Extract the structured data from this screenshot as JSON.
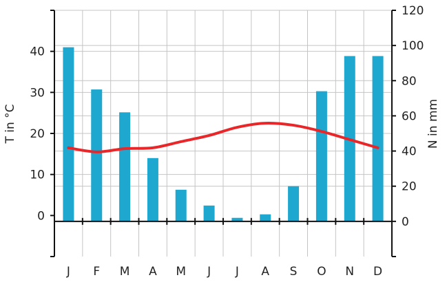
{
  "chart_data": {
    "type": "bar-line-combo",
    "title": "",
    "categories": [
      "J",
      "F",
      "M",
      "A",
      "M",
      "J",
      "J",
      "A",
      "S",
      "O",
      "N",
      "D"
    ],
    "series": [
      {
        "name": "",
        "type": "bar",
        "axis": "right",
        "color": "#1ea7cf",
        "values": [
          99,
          75,
          62,
          36,
          18,
          9,
          2,
          4,
          20,
          74,
          94,
          94
        ]
      },
      {
        "name": "",
        "type": "line",
        "axis": "left",
        "color": "#e8272a",
        "values": [
          16.5,
          15.5,
          16.3,
          16.5,
          18.0,
          19.5,
          21.5,
          22.5,
          22.0,
          20.5,
          18.5,
          16.5
        ]
      }
    ],
    "y_left": {
      "label": "T in °C",
      "ticks": [
        0,
        10,
        20,
        30,
        40
      ],
      "ylim": [
        -10,
        50
      ]
    },
    "y_right": {
      "label": "N in mm",
      "ticks": [
        0,
        20,
        40,
        60,
        80,
        100,
        120
      ],
      "ylim": [
        -20,
        120
      ]
    },
    "grid": true
  }
}
